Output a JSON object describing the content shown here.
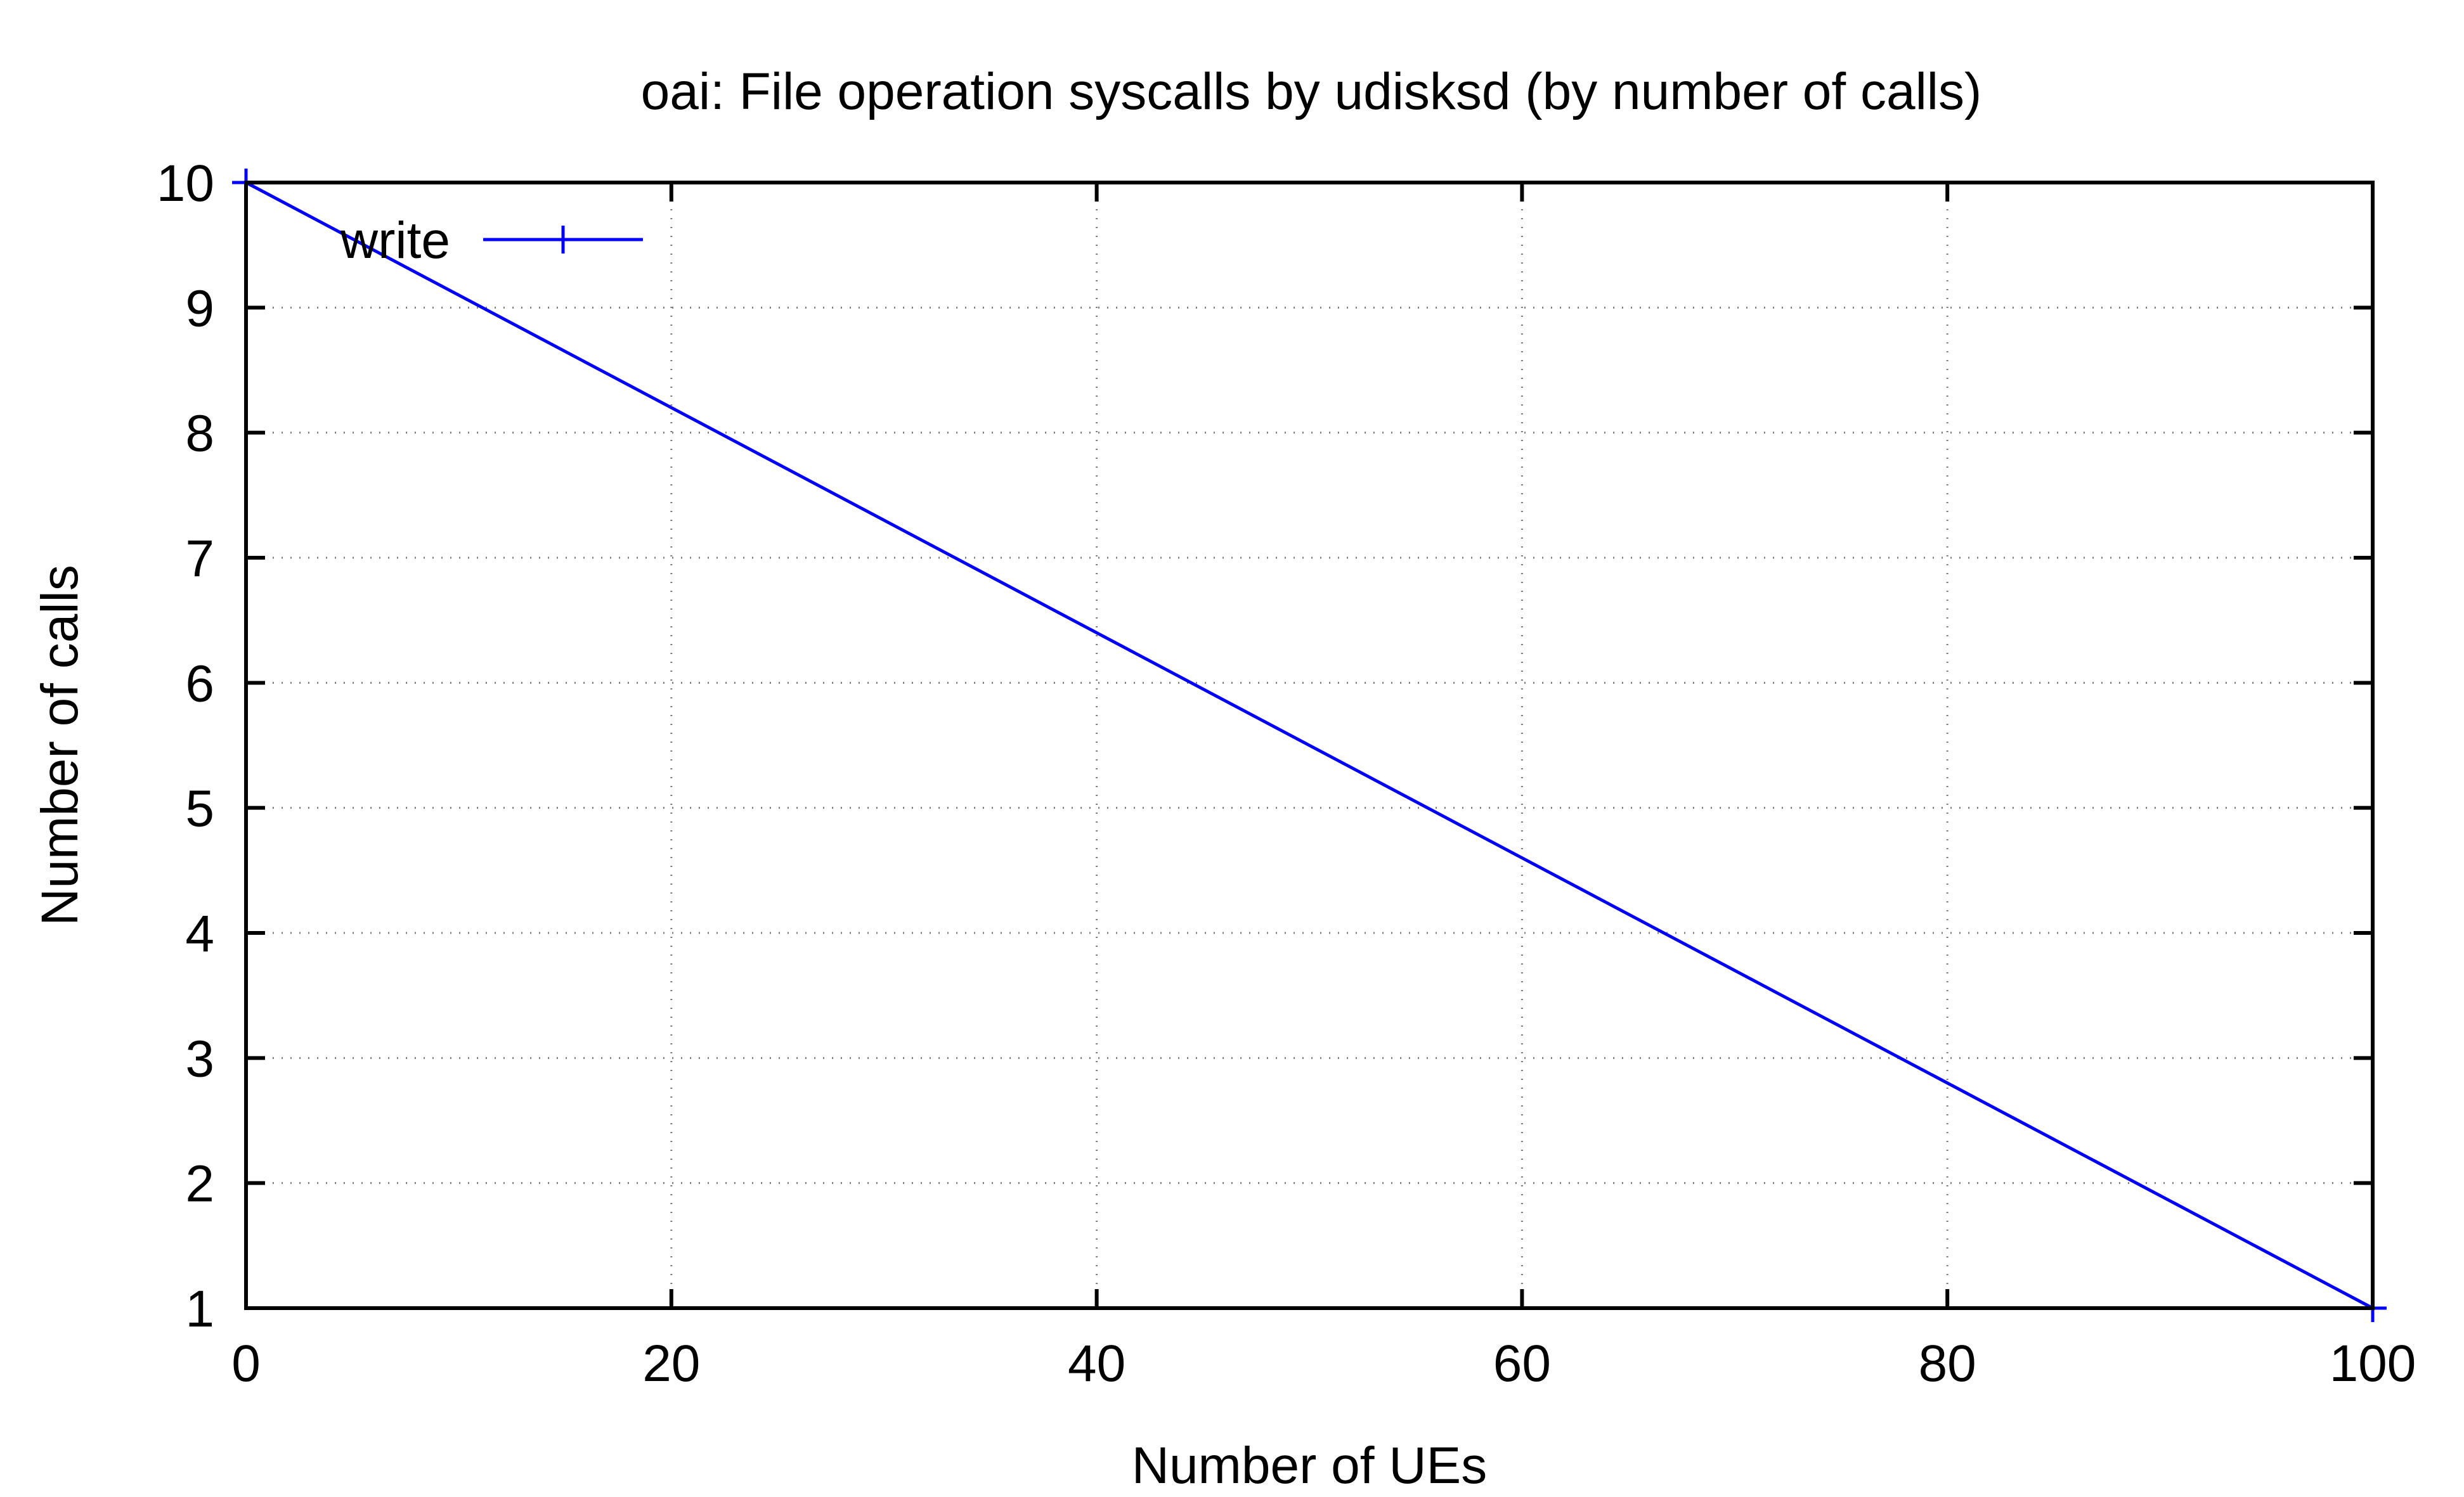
{
  "chart_data": {
    "type": "line",
    "title": "oai: File operation syscalls by udisksd (by number of calls)",
    "xlabel": "Number of UEs",
    "ylabel": "Number of calls",
    "xlim": [
      0,
      100
    ],
    "ylim": [
      1,
      10
    ],
    "x_ticks": [
      0,
      20,
      40,
      60,
      80,
      100
    ],
    "y_ticks": [
      1,
      2,
      3,
      4,
      5,
      6,
      7,
      8,
      9,
      10
    ],
    "grid": true,
    "legend_position": "top-left",
    "series": [
      {
        "name": "write",
        "color": "#0000ff",
        "marker": "plus",
        "x": [
          0,
          100
        ],
        "y": [
          10,
          1
        ]
      }
    ]
  }
}
